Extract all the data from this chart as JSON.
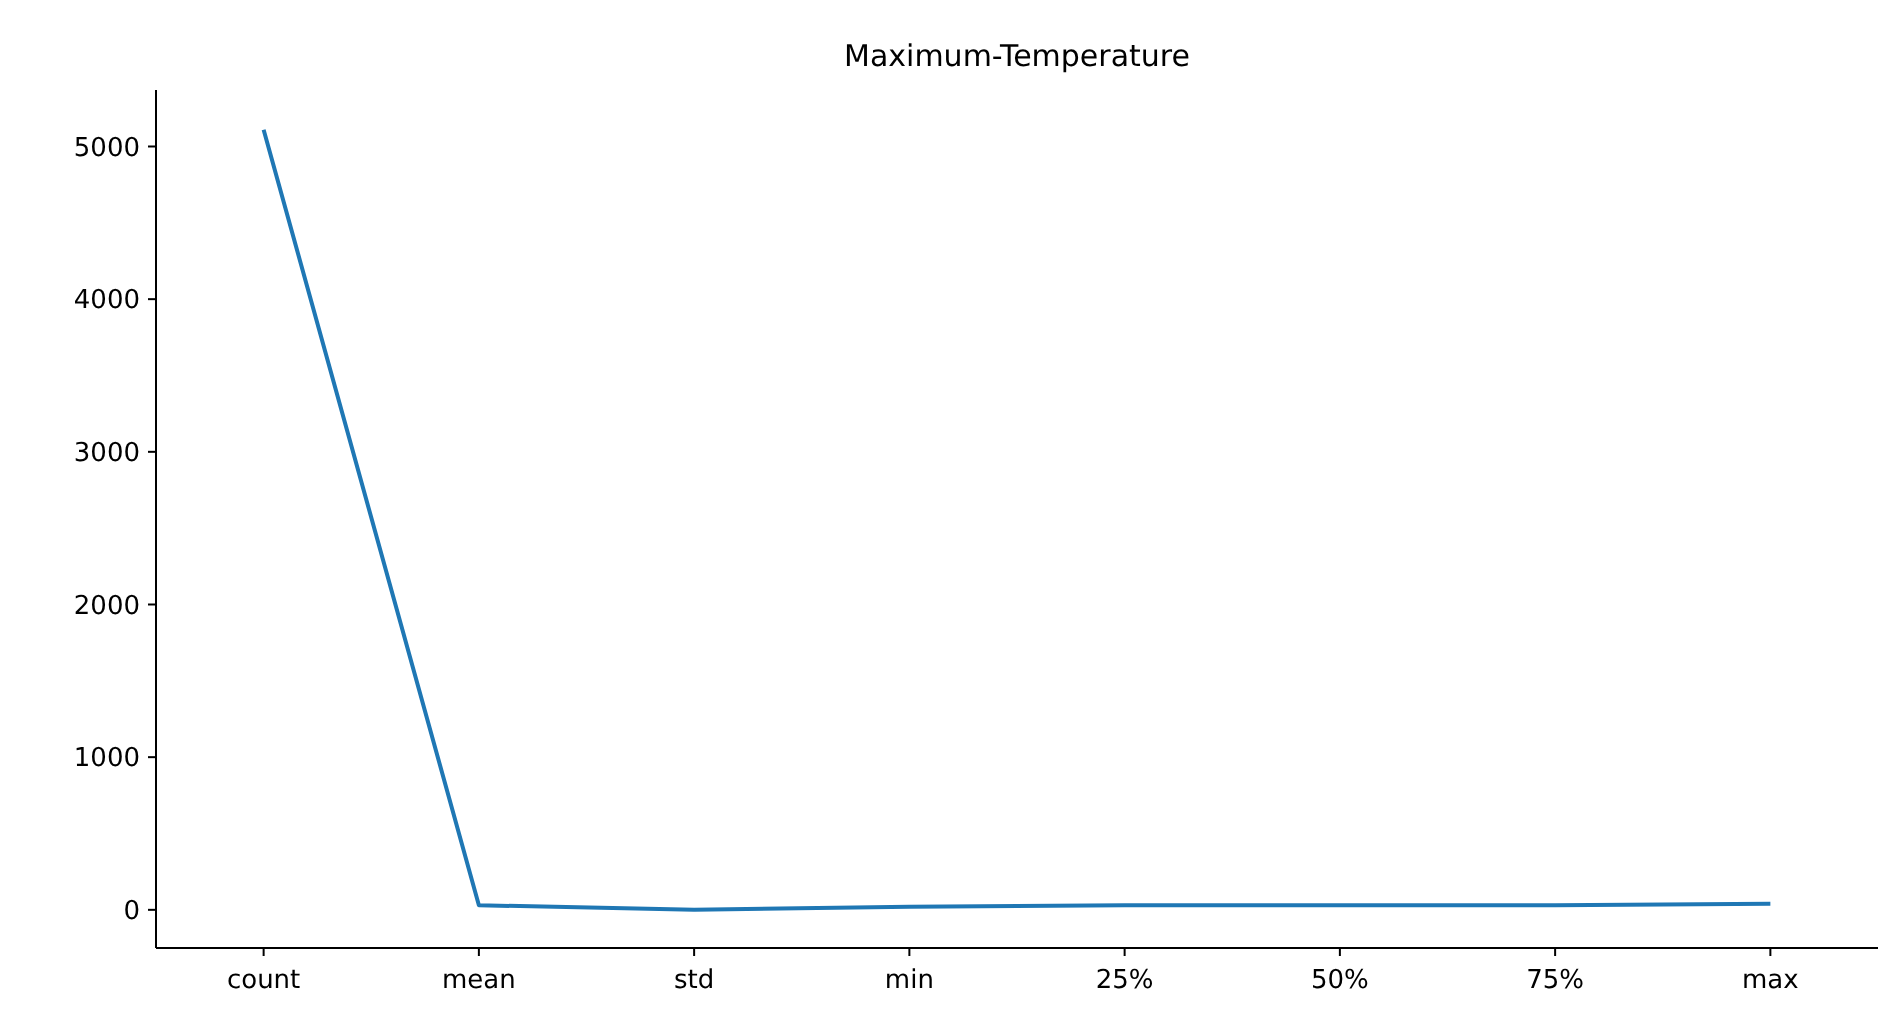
{
  "chart_data": {
    "type": "line",
    "title": "Maximum-Temperature",
    "categories": [
      "count",
      "mean",
      "std",
      "min",
      "25%",
      "50%",
      "75%",
      "max"
    ],
    "series": [
      {
        "color": "#1f77b4",
        "values": [
          5110,
          30,
          0,
          20,
          30,
          30,
          30,
          40
        ]
      }
    ],
    "ylim": [
      -250,
      5370
    ],
    "yticks": [
      0,
      1000,
      2000,
      3000,
      4000,
      5000
    ],
    "grid": false,
    "marker": "none",
    "line_style": "solid"
  }
}
